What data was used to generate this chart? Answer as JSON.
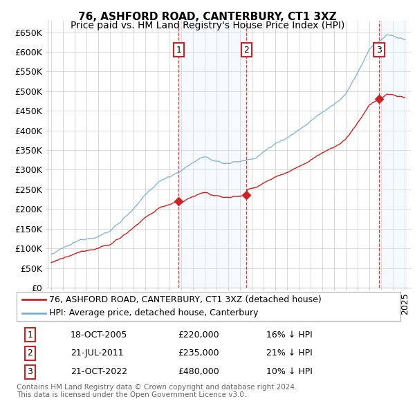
{
  "title": "76, ASHFORD ROAD, CANTERBURY, CT1 3XZ",
  "subtitle": "Price paid vs. HM Land Registry's House Price Index (HPI)",
  "ylim": [
    0,
    680000
  ],
  "yticks": [
    0,
    50000,
    100000,
    150000,
    200000,
    250000,
    300000,
    350000,
    400000,
    450000,
    500000,
    550000,
    600000,
    650000
  ],
  "hpi_color": "#7bafd4",
  "price_color": "#cc2222",
  "vline_color": "#cc2222",
  "shade_color": "#ddeeff",
  "grid_color": "#cccccc",
  "background_color": "#ffffff",
  "sale_dates": [
    2005.8,
    2011.55,
    2022.8
  ],
  "sale_prices": [
    220000,
    235000,
    480000
  ],
  "sale_labels": [
    "1",
    "2",
    "3"
  ],
  "legend_entries": [
    "76, ASHFORD ROAD, CANTERBURY, CT1 3XZ (detached house)",
    "HPI: Average price, detached house, Canterbury"
  ],
  "table_data": [
    [
      "1",
      "18-OCT-2005",
      "£220,000",
      "16% ↓ HPI"
    ],
    [
      "2",
      "21-JUL-2011",
      "£235,000",
      "21% ↓ HPI"
    ],
    [
      "3",
      "21-OCT-2022",
      "£480,000",
      "10% ↓ HPI"
    ]
  ],
  "footnote": "Contains HM Land Registry data © Crown copyright and database right 2024.\nThis data is licensed under the Open Government Licence v3.0.",
  "title_fontsize": 11,
  "subtitle_fontsize": 10,
  "axis_fontsize": 9,
  "legend_fontsize": 9,
  "table_fontsize": 9
}
